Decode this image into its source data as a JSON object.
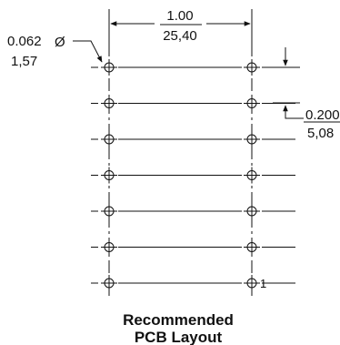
{
  "pitch_dimension": {
    "inch": "1.00",
    "mm": "25,40"
  },
  "hole_diameter_dimension": {
    "inch": "0.062",
    "mm": "1,57",
    "symbol": "Ø"
  },
  "row_spacing_dimension": {
    "inch": "0.200",
    "mm": "5,08"
  },
  "pin1_label": "1",
  "hole_rows": 7,
  "title": {
    "line1": "Recommended",
    "line2": "PCB Layout"
  }
}
